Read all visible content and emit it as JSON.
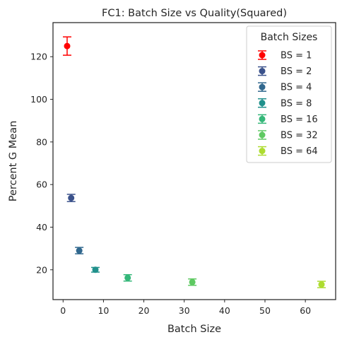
{
  "chart_data": {
    "type": "scatter",
    "title": "FC1: Batch Size vs Quality(Squared)",
    "xlabel": "Batch Size",
    "ylabel": "Percent G Mean",
    "xlim": [
      -2.5,
      67.5
    ],
    "ylim": [
      6,
      136
    ],
    "xticks": [
      0,
      10,
      20,
      30,
      40,
      50,
      60
    ],
    "yticks": [
      20,
      40,
      60,
      80,
      100,
      120
    ],
    "grid": false,
    "legend": {
      "title": "Batch Sizes",
      "placement": "top-right"
    },
    "series": [
      {
        "name": "BS = 1",
        "x": 1,
        "y": 125.0,
        "err": 4.3,
        "color": "#ff0000"
      },
      {
        "name": "BS = 2",
        "x": 2,
        "y": 53.7,
        "err": 1.7,
        "color": "#3b528b"
      },
      {
        "name": "BS = 4",
        "x": 4,
        "y": 29.0,
        "err": 1.5,
        "color": "#31688e"
      },
      {
        "name": "BS = 8",
        "x": 8,
        "y": 20.0,
        "err": 1.1,
        "color": "#21918c"
      },
      {
        "name": "BS = 16",
        "x": 16,
        "y": 16.2,
        "err": 1.5,
        "color": "#35b779"
      },
      {
        "name": "BS = 32",
        "x": 32,
        "y": 14.2,
        "err": 1.5,
        "color": "#5ec962"
      },
      {
        "name": "BS = 64",
        "x": 64,
        "y": 13.1,
        "err": 1.5,
        "color": "#addc30"
      }
    ]
  }
}
